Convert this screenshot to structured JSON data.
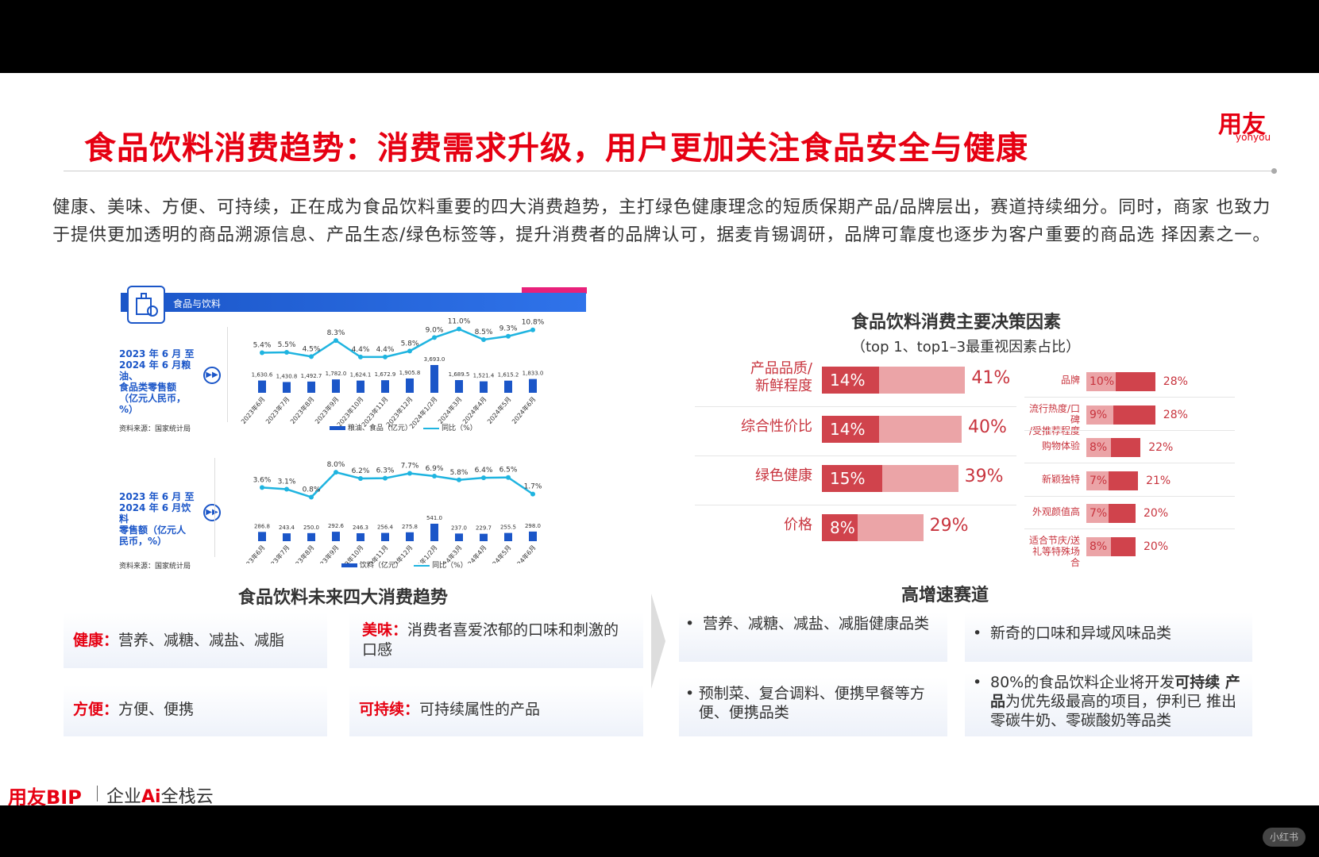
{
  "header": {
    "title": "食品饮料消费趋势：消费需求升级，用户更加关注食品安全与健康",
    "logo_text": "用友",
    "logo_sub": "yonyou"
  },
  "intro": "健康、美味、方便、可持续，正在成为食品饮料重要的四大消费趋势，主打绿色健康理念的短质保期产品/品牌层出，赛道持续细分。同时，商家 也致力于提供更加透明的商品溯源信息、产品生态/绿色标签等，提升消费者的品牌认可，据麦肯锡调研，品牌可靠度也逐步为客户重要的商品选 择因素之一。",
  "panel": {
    "label": "食品与饮料"
  },
  "chart_data": [
    {
      "type": "bar",
      "title": "2023 年 6 月 至 2024 年 6 月粮油、食品类零售额（亿元人民币，%）",
      "source": "资料来源：国家统计局",
      "categories": [
        "2023年6月",
        "2023年7月",
        "2023年8月",
        "2023年9月",
        "2023年10月",
        "2023年11月",
        "2023年12月",
        "2024年1/2月",
        "2024年3月",
        "2024年4月",
        "2024年5月",
        "2024年6月"
      ],
      "series": [
        {
          "name": "粮油、食品（亿元）",
          "type": "bar",
          "values": [
            1630.6,
            1430.8,
            1492.7,
            1782.0,
            1624.1,
            1672.9,
            1905.8,
            3693.0,
            1689.5,
            1521.4,
            1615.2,
            1833.0
          ],
          "labels": [
            "1,630.6",
            "1,430.8",
            "1,492.7",
            "1,782.0",
            "1,624.1",
            "1,672.9",
            "1,905.8",
            "3,693.0",
            "1,689.5",
            "1,521.4",
            "1,615.2",
            "1,833.0"
          ]
        },
        {
          "name": "同比（%）",
          "type": "line",
          "values": [
            5.4,
            5.5,
            4.5,
            8.3,
            4.4,
            4.4,
            5.8,
            9.0,
            11.0,
            8.5,
            9.3,
            10.8
          ],
          "labels": [
            "5.4%",
            "5.5%",
            "4.5%",
            "8.3%",
            "4.4%",
            "4.4%",
            "5.8%",
            "9.0%",
            "11.0%",
            "8.5%",
            "9.3%",
            "10.8%"
          ]
        }
      ]
    },
    {
      "type": "bar",
      "title": "2023 年 6 月 至 2024 年 6 月饮料零售额（亿元人民币，%）",
      "source": "资料来源：国家统计局",
      "categories": [
        "2023年6月",
        "2023年7月",
        "2023年8月",
        "2023年9月",
        "2023年10月",
        "2023年11月",
        "2023年12月",
        "2024年1/2月",
        "2024年3月",
        "2024年4月",
        "2024年5月",
        "2024年6月"
      ],
      "series": [
        {
          "name": "饮料（亿元）",
          "type": "bar",
          "values": [
            286.8,
            243.4,
            250.0,
            292.6,
            246.3,
            256.4,
            275.8,
            541.0,
            237.0,
            229.7,
            255.5,
            298.0
          ],
          "labels": [
            "286.8",
            "243.4",
            "250.0",
            "292.6",
            "246.3",
            "256.4",
            "275.8",
            "541.0",
            "237.0",
            "229.7",
            "255.5",
            "298.0"
          ]
        },
        {
          "name": "同比（%）",
          "type": "line",
          "values": [
            3.6,
            3.1,
            0.8,
            8.0,
            6.2,
            6.3,
            7.7,
            6.9,
            5.8,
            6.4,
            6.5,
            1.7
          ],
          "labels": [
            "3.6%",
            "3.1%",
            "0.8%",
            "8.0%",
            "6.2%",
            "6.3%",
            "7.7%",
            "6.9%",
            "5.8%",
            "6.4%",
            "6.5%",
            "1.7%"
          ]
        }
      ]
    },
    {
      "type": "bar",
      "title": "食品饮料消费主要决策因素",
      "subtitle": "（top 1、top1–3最重视因素占比）",
      "categories": [
        "产品品质/新鲜程度",
        "综合性价比",
        "绿色健康",
        "价格"
      ],
      "series": [
        {
          "name": "top 1",
          "values": [
            14,
            14,
            15,
            8
          ],
          "labels": [
            "14%",
            "14%",
            "15%",
            "8%"
          ]
        },
        {
          "name": "top1–3",
          "values": [
            41,
            40,
            39,
            29
          ],
          "labels": [
            "41%",
            "40%",
            "39%",
            "29%"
          ]
        }
      ]
    },
    {
      "type": "bar",
      "categories": [
        "品牌",
        "流行热度/口碑/受推荐程度",
        "购物体验",
        "新颖独特",
        "外观颜值高",
        "适合节庆/送礼等特殊场合"
      ],
      "series": [
        {
          "name": "top 1",
          "values": [
            10,
            9,
            8,
            7,
            7,
            8
          ],
          "labels": [
            "10%",
            "9%",
            "8%",
            "7%",
            "7%",
            "8%"
          ]
        },
        {
          "name": "top1–3",
          "values": [
            28,
            28,
            22,
            21,
            20,
            20
          ],
          "labels": [
            "28%",
            "28%",
            "22%",
            "21%",
            "20%",
            "20%"
          ]
        }
      ]
    }
  ],
  "chart_text": {
    "c1_desc": [
      "2023 年 6 月 至",
      "2024 年 6 月粮油、",
      "食品类零售额",
      "（亿元人民币，",
      "%）"
    ],
    "c2_desc": [
      "2023 年 6 月 至",
      "2024 年 6 月饮料",
      "零售额（亿元人",
      "民币，%）"
    ],
    "source": "资料来源：国家统计局",
    "c1_legend_bar": "粮油、食品（亿元）",
    "c1_legend_line": "同比（%）",
    "c2_legend_bar": "饮料（亿元）",
    "c2_legend_line": "同比（%）",
    "factors_title": "食品饮料消费主要决策因素",
    "factors_sub": "（top 1、top1–3最重视因素占比）",
    "factor_lines": [
      [
        "产品品质/",
        "新鲜程度"
      ],
      [
        "综合性价比"
      ],
      [
        "绿色健康"
      ],
      [
        "价格"
      ]
    ],
    "small_lines": [
      [
        "品牌"
      ],
      [
        "流行热度/口碑",
        "/受推荐程度"
      ],
      [
        "购物体验"
      ],
      [
        "新颖独特"
      ],
      [
        "外观颜值高"
      ],
      [
        "适合节庆/送",
        "礼等特殊场合"
      ]
    ]
  },
  "trends": {
    "title": "食品饮料未来四大消费趋势",
    "items": [
      {
        "key": "健康：",
        "text": "营养、减糖、减盐、减脂"
      },
      {
        "key": "美味：",
        "text": "消费者喜爱浓郁的口味和刺激的口感"
      },
      {
        "key": "方便：",
        "text": "方便、便携"
      },
      {
        "key": "可持续：",
        "text": "可持续属性的产品"
      }
    ]
  },
  "growth": {
    "title": "高增速赛道",
    "items": [
      {
        "text": "营养、减糖、减盐、减脂健康品类"
      },
      {
        "text": "新奇的口味和异域风味品类"
      },
      {
        "text": "预制菜、复合调料、便携早餐等方便、便携品类"
      },
      {
        "pre": "80%的食品饮料企业将开发",
        "bold": "可持续 产品",
        "post": "为优先级最高的项目，伊利已 推出零碳牛奶、零碳酸奶等品类"
      }
    ]
  },
  "footer": {
    "brand": "用友BIP",
    "slogan_pre": "企业",
    "slogan_ai": "Ai",
    "slogan_post": "全栈云",
    "watermark": "小红书"
  },
  "colors": {
    "accent_red": "#e60012",
    "chart_blue": "#1b56c8",
    "line_cyan": "#1fb4e0",
    "bar_dark_red": "#d0434c",
    "bar_light_red": "#eba4a7"
  }
}
